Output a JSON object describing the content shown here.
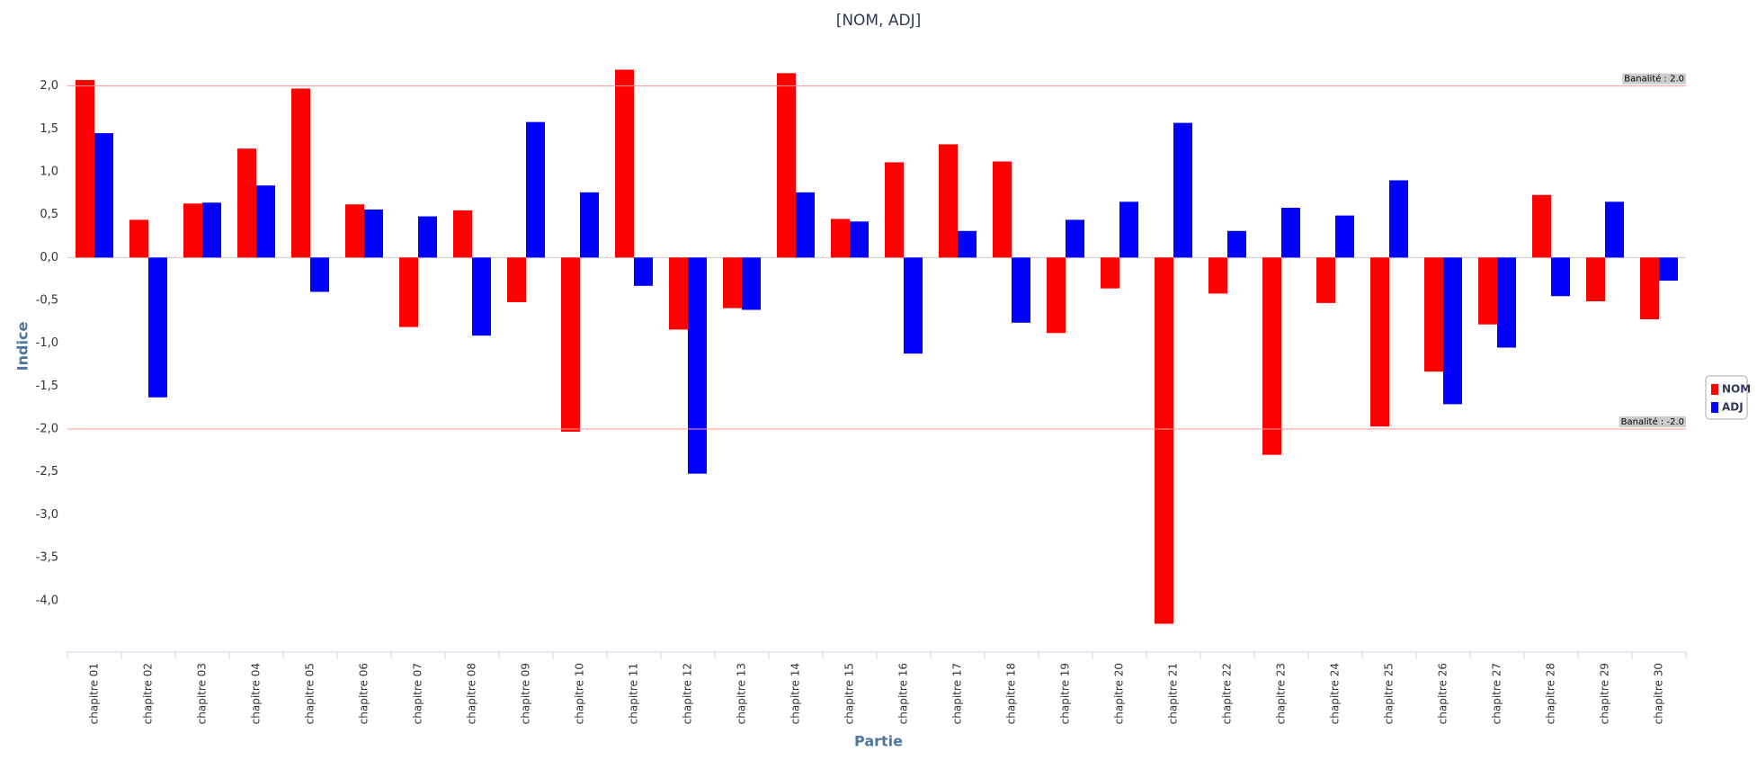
{
  "chart_data": {
    "type": "bar",
    "title": "[NOM, ADJ]",
    "x_label": "Partie",
    "y_label": "Indice",
    "categories": [
      "chapitre 01",
      "chapitre 02",
      "chapitre 03",
      "chapitre 04",
      "chapitre 05",
      "chapitre 06",
      "chapitre 07",
      "chapitre 08",
      "chapitre 09",
      "chapitre 10",
      "chapitre 11",
      "chapitre 12",
      "chapitre 13",
      "chapitre 14",
      "chapitre 15",
      "chapitre 16",
      "chapitre 17",
      "chapitre 18",
      "chapitre 19",
      "chapitre 20",
      "chapitre 21",
      "chapitre 22",
      "chapitre 23",
      "chapitre 24",
      "chapitre 25",
      "chapitre 26",
      "chapitre 27",
      "chapitre 28",
      "chapitre 29",
      "chapitre 30"
    ],
    "series": [
      {
        "name": "NOM",
        "color": "#ff0000",
        "values": [
          2.07,
          0.44,
          0.63,
          1.27,
          1.97,
          0.62,
          -0.81,
          0.55,
          -0.52,
          -2.03,
          2.19,
          -0.84,
          -0.59,
          2.15,
          0.45,
          1.11,
          1.32,
          1.12,
          -0.88,
          -0.36,
          -4.27,
          -0.42,
          -2.3,
          -0.53,
          -1.97,
          -1.33,
          -0.78,
          0.73,
          -0.51,
          -0.72
        ]
      },
      {
        "name": "ADJ",
        "color": "#0000ff",
        "values": [
          1.45,
          -1.63,
          0.64,
          0.84,
          -0.4,
          0.56,
          0.48,
          -0.91,
          1.58,
          0.76,
          -0.33,
          -2.52,
          -0.61,
          0.76,
          0.42,
          -1.12,
          0.31,
          -0.76,
          0.44,
          0.65,
          1.57,
          0.31,
          0.58,
          0.49,
          0.9,
          -1.71,
          -1.05,
          -0.45,
          0.65,
          -0.27
        ]
      }
    ],
    "ylim": [
      -4.6,
      2.3
    ],
    "yticks": [
      {
        "value": -4.0,
        "label": "-4,0"
      },
      {
        "value": -3.5,
        "label": "-3,5"
      },
      {
        "value": -3.0,
        "label": "-3,0"
      },
      {
        "value": -2.5,
        "label": "-2,5"
      },
      {
        "value": -2.0,
        "label": "-2,0"
      },
      {
        "value": -1.5,
        "label": "-1,5"
      },
      {
        "value": -1.0,
        "label": "-1,0"
      },
      {
        "value": -0.5,
        "label": "-0,5"
      },
      {
        "value": 0,
        "label": "0,0"
      },
      {
        "value": 0.5,
        "label": "0,5"
      },
      {
        "value": 1.0,
        "label": "1,0"
      },
      {
        "value": 1.5,
        "label": "1,5"
      },
      {
        "value": 2.0,
        "label": "2,0"
      }
    ],
    "plot_lines": [
      {
        "value": 2.0,
        "label": "Banalité : 2.0"
      },
      {
        "value": -2.0,
        "label": "Banalité : -2.0"
      }
    ],
    "legend": "right"
  }
}
